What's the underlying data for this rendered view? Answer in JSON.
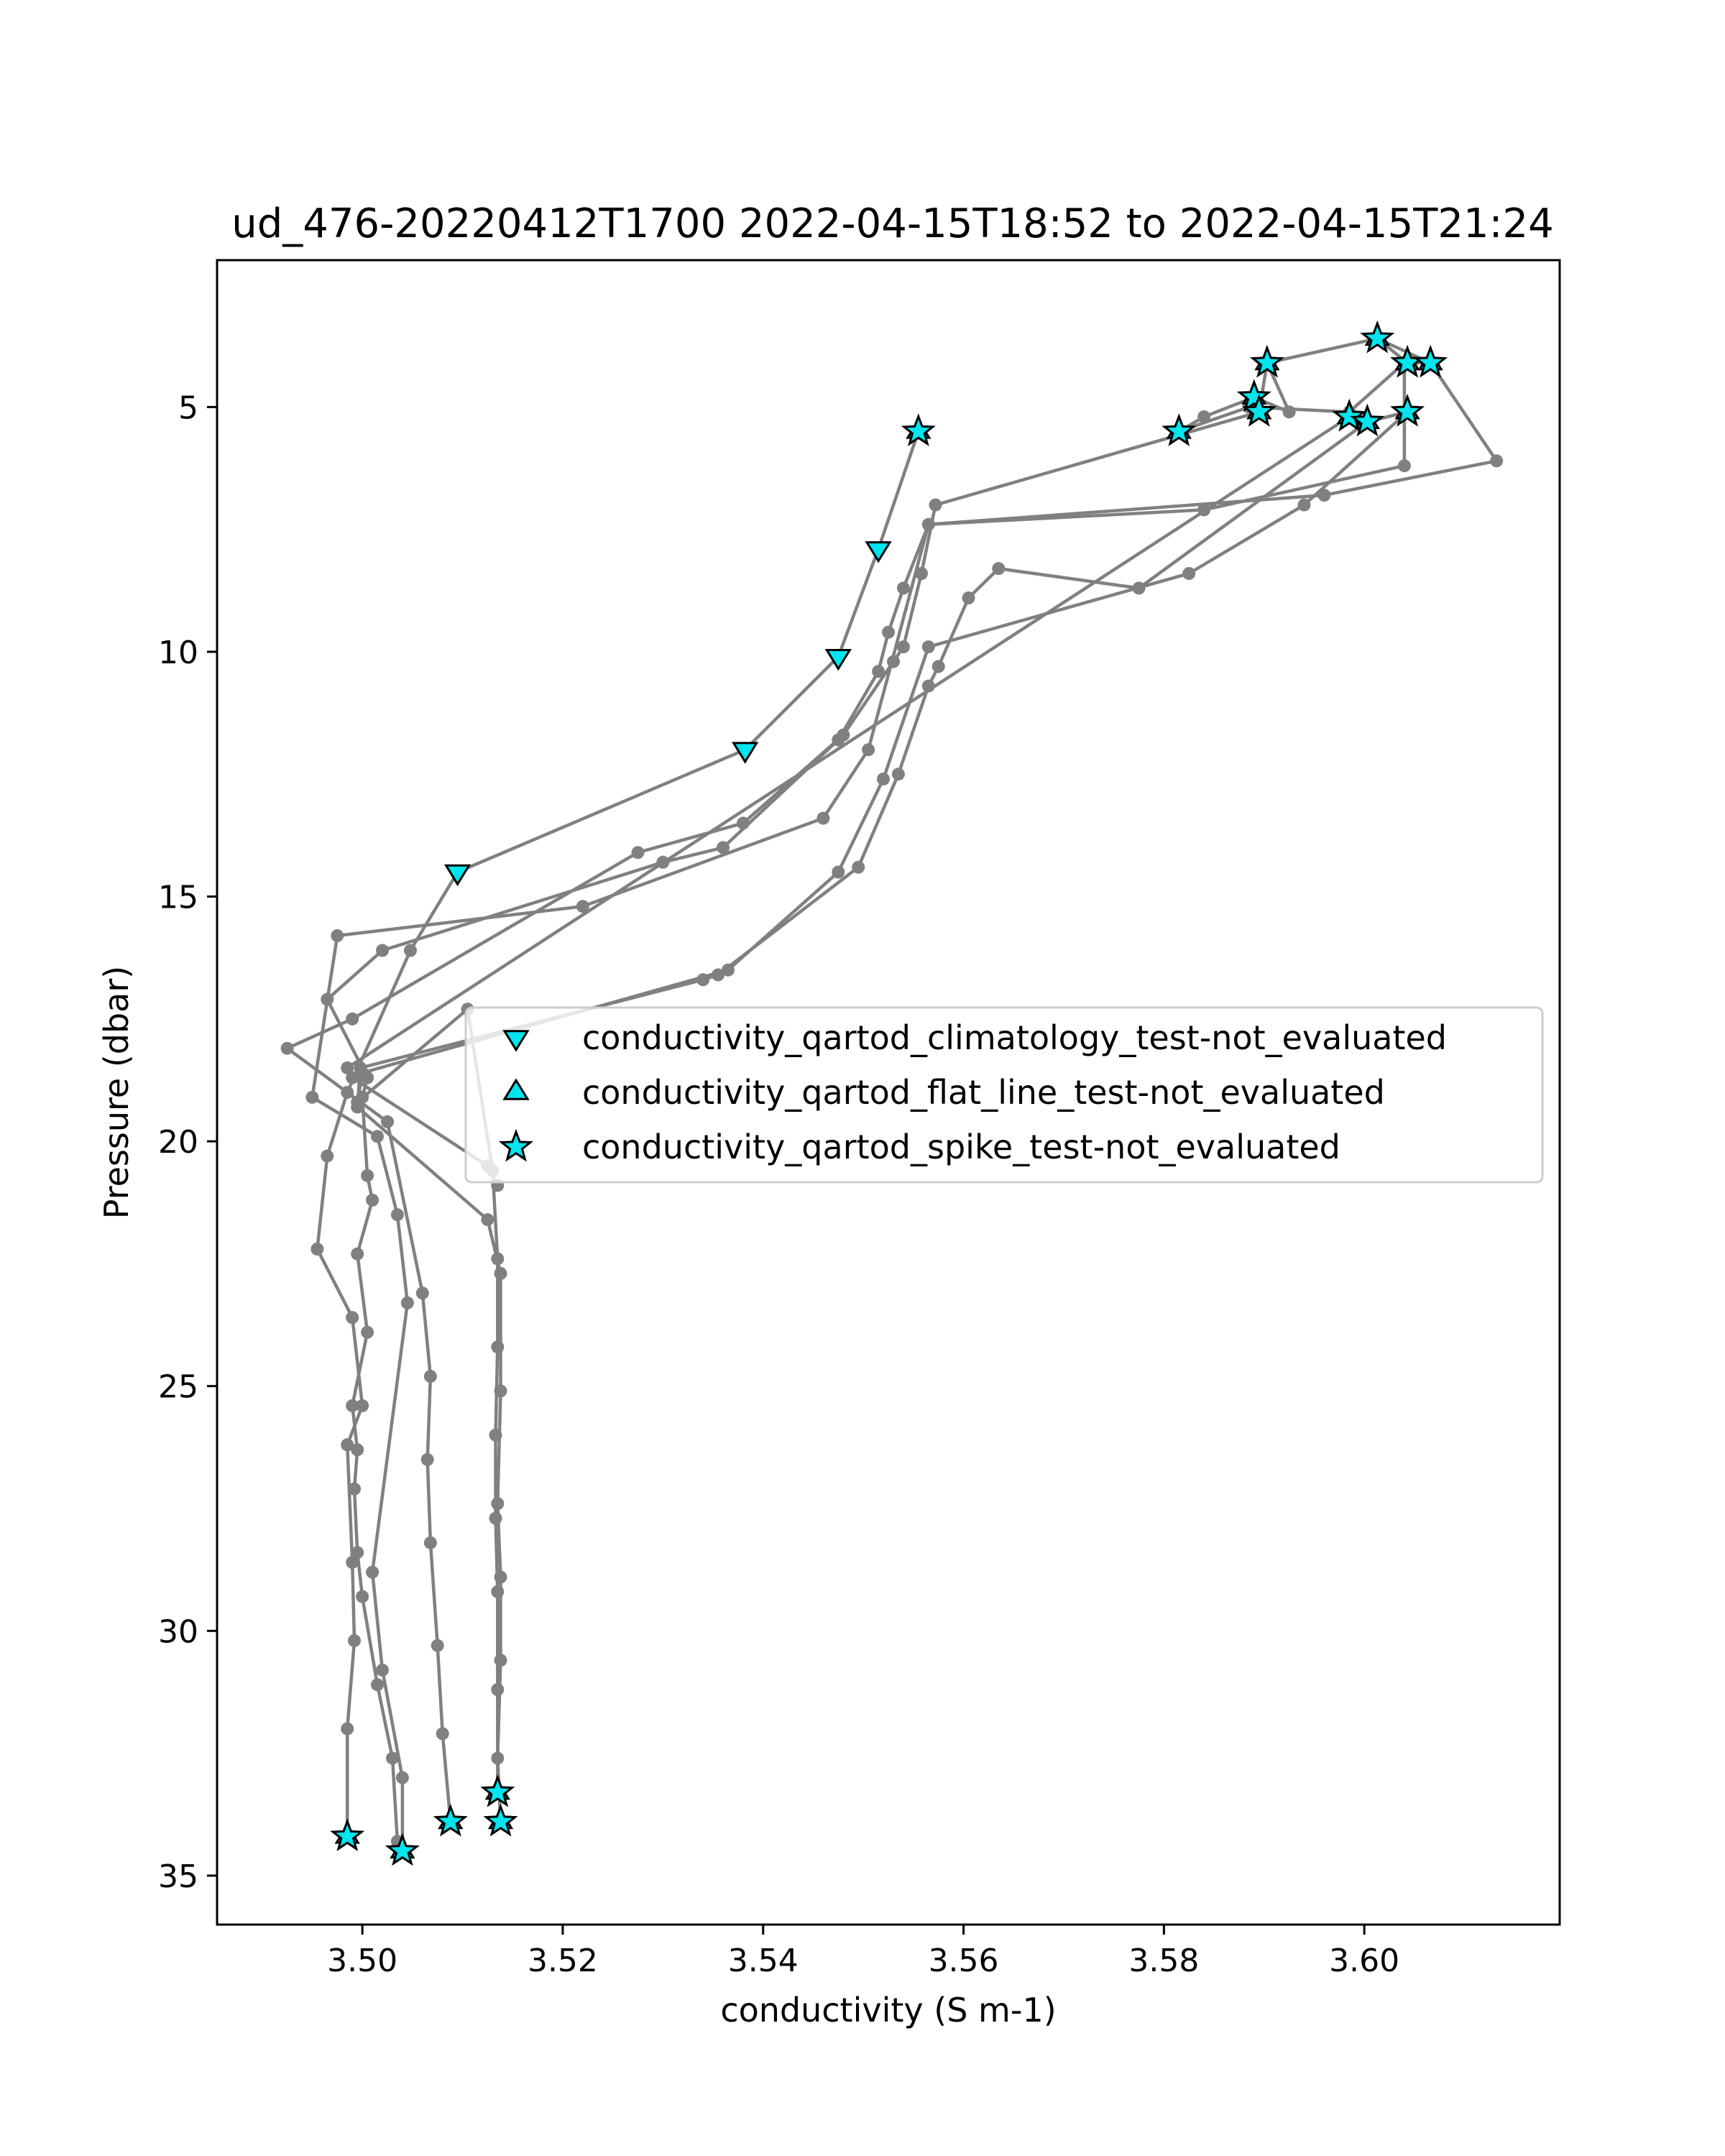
{
  "chart_data": {
    "type": "line",
    "title": "ud_476-20220412T1700 2022-04-15T18:52 to 2022-04-15T21:24",
    "xlabel": "conductivity (S m-1)",
    "ylabel": "Pressure (dbar)",
    "xlim": [
      3.4855,
      3.6195
    ],
    "ylim": [
      36.0,
      2.0
    ],
    "y_inverted": true,
    "xticks": [
      "3.50",
      "3.52",
      "3.54",
      "3.56",
      "3.58",
      "3.60"
    ],
    "yticks": [
      "5",
      "10",
      "15",
      "20",
      "25",
      "30",
      "35"
    ],
    "grid": false,
    "legend_position": "center-right",
    "colors": {
      "line": "#808080",
      "marker_fill": "#00e5ee",
      "marker_edge": "#000000"
    },
    "legend": [
      {
        "marker": "triangle-down",
        "label": "conductivity_qartod_climatology_test-not_evaluated"
      },
      {
        "marker": "triangle-up",
        "label": "conductivity_qartod_flat_line_test-not_evaluated"
      },
      {
        "marker": "star",
        "label": "conductivity_qartod_spike_test-not_evaluated"
      }
    ],
    "profiles": [
      {
        "points": [
          [
            3.5555,
            5.5
          ],
          [
            3.5515,
            7.9
          ],
          [
            3.5475,
            10.1
          ],
          [
            3.5382,
            12.0
          ],
          [
            3.5095,
            14.5
          ],
          [
            3.5048,
            16.1
          ],
          [
            3.4985,
            19.0
          ],
          [
            3.4965,
            20.3
          ],
          [
            3.4955,
            22.2
          ],
          [
            3.499,
            23.6
          ],
          [
            3.5,
            25.4
          ],
          [
            3.4985,
            26.2
          ],
          [
            3.499,
            28.6
          ],
          [
            3.4992,
            30.2
          ],
          [
            3.4985,
            32.0
          ],
          [
            3.4985,
            34.2
          ]
        ]
      },
      {
        "points": [
          [
            3.5815,
            5.5
          ],
          [
            3.584,
            5.2
          ],
          [
            3.589,
            4.8
          ],
          [
            3.5925,
            5.1
          ],
          [
            3.5903,
            4.1
          ],
          [
            3.5895,
            5.1
          ],
          [
            3.5572,
            7.0
          ],
          [
            3.5558,
            8.4
          ],
          [
            3.554,
            9.9
          ],
          [
            3.553,
            10.2
          ],
          [
            3.548,
            11.7
          ],
          [
            3.538,
            13.5
          ],
          [
            3.5275,
            14.1
          ],
          [
            3.499,
            17.5
          ],
          [
            3.4925,
            18.1
          ],
          [
            3.5025,
            19.6
          ],
          [
            3.506,
            23.1
          ],
          [
            3.5068,
            24.8
          ],
          [
            3.5065,
            26.5
          ],
          [
            3.5068,
            28.2
          ],
          [
            3.5075,
            30.3
          ],
          [
            3.508,
            32.1
          ],
          [
            3.5088,
            33.9
          ]
        ]
      },
      {
        "points": [
          [
            3.5815,
            5.5
          ],
          [
            3.5885,
            5.0
          ],
          [
            3.5985,
            5.1
          ],
          [
            3.604,
            4.1
          ],
          [
            3.604,
            6.2
          ],
          [
            3.584,
            7.1
          ],
          [
            3.5565,
            7.4
          ],
          [
            3.554,
            8.7
          ],
          [
            3.5525,
            9.6
          ],
          [
            3.5515,
            10.4
          ],
          [
            3.5475,
            11.8
          ],
          [
            3.536,
            14.0
          ],
          [
            3.53,
            14.3
          ],
          [
            3.502,
            16.1
          ],
          [
            3.4965,
            17.1
          ],
          [
            3.5005,
            18.7
          ],
          [
            3.5,
            19.1
          ],
          [
            3.5005,
            20.7
          ],
          [
            3.501,
            21.2
          ],
          [
            3.4995,
            22.3
          ],
          [
            3.5005,
            23.9
          ],
          [
            3.499,
            25.4
          ],
          [
            3.4995,
            26.3
          ],
          [
            3.4992,
            27.1
          ],
          [
            3.4995,
            28.4
          ],
          [
            3.5,
            29.3
          ],
          [
            3.5015,
            31.1
          ],
          [
            3.503,
            32.6
          ],
          [
            3.5035,
            34.3
          ]
        ]
      },
      {
        "points": [
          [
            3.6013,
            3.6
          ],
          [
            3.6066,
            4.1
          ],
          [
            3.6132,
            6.1
          ],
          [
            3.596,
            6.8
          ],
          [
            3.5565,
            7.4
          ],
          [
            3.5505,
            12.0
          ],
          [
            3.546,
            13.4
          ],
          [
            3.522,
            15.2
          ],
          [
            3.4975,
            15.8
          ],
          [
            3.495,
            19.1
          ],
          [
            3.5015,
            19.9
          ],
          [
            3.5035,
            21.5
          ],
          [
            3.5045,
            23.3
          ],
          [
            3.501,
            28.8
          ],
          [
            3.502,
            30.8
          ],
          [
            3.504,
            33.0
          ],
          [
            3.504,
            34.5
          ]
        ]
      },
      {
        "points": [
          [
            3.5985,
            5.2
          ],
          [
            3.6003,
            5.3
          ],
          [
            3.6043,
            5.1
          ],
          [
            3.594,
            7.0
          ],
          [
            3.5825,
            8.4
          ],
          [
            3.5565,
            9.9
          ],
          [
            3.552,
            12.6
          ],
          [
            3.5475,
            14.5
          ],
          [
            3.5365,
            16.5
          ],
          [
            3.5,
            18.6
          ],
          [
            3.4995,
            19.2
          ],
          [
            3.5105,
            17.3
          ],
          [
            3.513,
            20.6
          ],
          [
            3.5135,
            22.4
          ],
          [
            3.5135,
            24.2
          ],
          [
            3.5133,
            26.0
          ],
          [
            3.5133,
            27.7
          ],
          [
            3.5135,
            29.2
          ],
          [
            3.5135,
            31.2
          ],
          [
            3.5135,
            33.3
          ]
        ]
      },
      {
        "points": [
          [
            3.6003,
            5.3
          ],
          [
            3.5775,
            8.7
          ],
          [
            3.5635,
            8.3
          ],
          [
            3.5605,
            8.9
          ],
          [
            3.5575,
            10.3
          ],
          [
            3.5565,
            10.7
          ],
          [
            3.5535,
            12.5
          ],
          [
            3.5495,
            14.4
          ],
          [
            3.5355,
            16.6
          ],
          [
            3.534,
            16.7
          ],
          [
            3.4998,
            18.5
          ],
          [
            3.4995,
            19.3
          ],
          [
            3.5125,
            21.6
          ],
          [
            3.5138,
            22.7
          ],
          [
            3.5138,
            25.1
          ],
          [
            3.5135,
            27.4
          ],
          [
            3.5138,
            28.9
          ],
          [
            3.5138,
            30.6
          ],
          [
            3.5135,
            32.6
          ],
          [
            3.5138,
            33.9
          ]
        ]
      },
      {
        "points": [
          [
            3.5985,
            5.2
          ],
          [
            3.4985,
            18.5
          ],
          [
            3.499,
            18.7
          ],
          [
            3.5125,
            20.5
          ],
          [
            3.5135,
            20.9
          ]
        ]
      },
      {
        "points": [
          [
            3.5985,
            5.2
          ],
          [
            3.6003,
            5.3
          ],
          [
            3.6043,
            5.1
          ]
        ]
      },
      {
        "points": [
          [
            3.6013,
            3.6
          ],
          [
            3.6043,
            4.1
          ],
          [
            3.6066,
            4.1
          ]
        ]
      },
      {
        "points": [
          [
            3.5903,
            4.1
          ],
          [
            3.6013,
            3.6
          ]
        ]
      }
    ],
    "markers": {
      "climatology": [
        [
          3.5515,
          7.9
        ],
        [
          3.5475,
          10.1
        ],
        [
          3.5382,
          12.0
        ],
        [
          3.5095,
          14.5
        ]
      ],
      "spike": [
        [
          3.5555,
          5.5
        ],
        [
          3.5815,
          5.5
        ],
        [
          3.5903,
          4.1
        ],
        [
          3.589,
          4.8
        ],
        [
          3.5895,
          5.1
        ],
        [
          3.6013,
          3.6
        ],
        [
          3.6043,
          4.1
        ],
        [
          3.6066,
          4.1
        ],
        [
          3.5985,
          5.2
        ],
        [
          3.6003,
          5.3
        ],
        [
          3.6043,
          5.1
        ],
        [
          3.4985,
          34.2
        ],
        [
          3.504,
          34.5
        ],
        [
          3.5088,
          33.9
        ],
        [
          3.5135,
          33.3
        ],
        [
          3.5138,
          33.9
        ]
      ]
    }
  }
}
